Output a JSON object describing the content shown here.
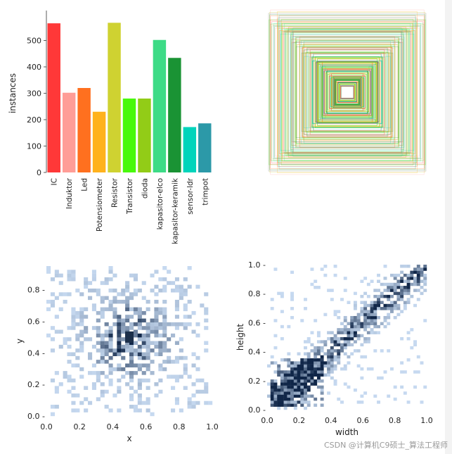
{
  "chart_data": [
    {
      "type": "bar",
      "title": "",
      "xlabel": "",
      "ylabel": "instances",
      "ylim": [
        0,
        600
      ],
      "yticks": [
        0,
        100,
        200,
        300,
        400,
        500
      ],
      "grid": false,
      "categories": [
        "IC",
        "Induktor",
        "Led",
        "Potensiometer",
        "Resistor",
        "Transistor",
        "dioda",
        "kapasitor-elco",
        "kapasitor-keramik",
        "sensor-ldr",
        "trimpot"
      ],
      "values": [
        565,
        302,
        320,
        230,
        567,
        280,
        280,
        502,
        434,
        172,
        186
      ],
      "colors": [
        "#ff3838",
        "#ff9d97",
        "#ff701f",
        "#ffb21d",
        "#cfd231",
        "#48f90a",
        "#92cc17",
        "#3ddb86",
        "#1a9334",
        "#00d4bb",
        "#2c99a8"
      ]
    },
    {
      "type": "boxes",
      "title": "",
      "description_key": "overlaid normalized bounding boxes centered on image",
      "box_sizes": [
        0.95,
        0.92,
        0.9,
        0.88,
        0.85,
        0.82,
        0.8,
        0.78,
        0.75,
        0.72,
        0.7,
        0.68,
        0.65,
        0.62,
        0.6,
        0.58,
        0.55,
        0.52,
        0.5,
        0.48,
        0.45,
        0.42,
        0.4,
        0.38,
        0.35,
        0.32,
        0.3,
        0.28,
        0.25,
        0.22,
        0.2,
        0.18,
        0.16,
        0.14,
        0.12,
        0.1,
        0.08,
        0.06
      ]
    },
    {
      "type": "heatmap",
      "title": "",
      "xlabel": "x",
      "ylabel": "y",
      "xlim": [
        0,
        1.0
      ],
      "ylim": [
        0,
        0.95
      ],
      "xticks": [
        0.0,
        0.2,
        0.4,
        0.6,
        0.8,
        1.0
      ],
      "yticks": [
        0.0,
        0.2,
        0.4,
        0.6,
        0.8
      ],
      "xticklabels": [
        "0.0",
        "0.2",
        "0.4",
        "0.6",
        "0.8",
        "1.0"
      ],
      "yticklabels": [
        "0.0 -",
        "0.2 -",
        "0.4 -",
        "0.6 -",
        "0.8 -"
      ],
      "hotspot": {
        "x": 0.5,
        "y": 0.5
      },
      "color": "#1f5fa8"
    },
    {
      "type": "heatmap",
      "title": "",
      "xlabel": "width",
      "ylabel": "height",
      "xlim": [
        0,
        1.0
      ],
      "ylim": [
        0,
        1.0
      ],
      "xticks": [
        0.0,
        0.2,
        0.4,
        0.6,
        0.8,
        1.0
      ],
      "yticks": [
        0.0,
        0.2,
        0.4,
        0.6,
        0.8,
        1.0
      ],
      "xticklabels": [
        "0.0",
        "0.2",
        "0.4",
        "0.6",
        "0.8",
        "1.0"
      ],
      "yticklabels": [
        "0.0 -",
        "0.2 -",
        "0.4 -",
        "0.6 -",
        "0.8 -",
        "1.0 -"
      ],
      "trend": "diagonal",
      "color": "#1f5fa8"
    }
  ],
  "watermark": "CSDN @计算机C9硕士_算法工程师"
}
